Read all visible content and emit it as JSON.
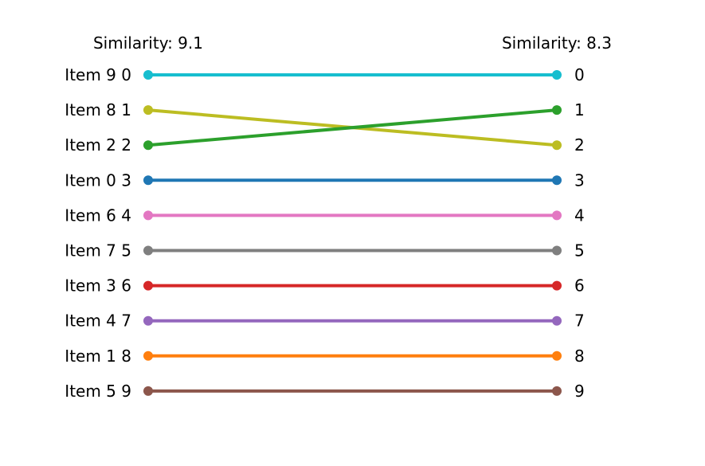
{
  "chart_data": {
    "type": "slope",
    "left_title": "Similarity: 9.1",
    "right_title": "Similarity: 8.3",
    "left_labels": [
      "Item 9 0",
      "Item 8 1",
      "Item 2 2",
      "Item 0 3",
      "Item 6 4",
      "Item 7 5",
      "Item 3 6",
      "Item 4 7",
      "Item 1 8",
      "Item 5 9"
    ],
    "right_labels": [
      "0",
      "1",
      "2",
      "3",
      "4",
      "5",
      "6",
      "7",
      "8",
      "9"
    ],
    "series": [
      {
        "name": "Item 9",
        "left_rank": 0,
        "right_rank": 0,
        "color": "#17becf"
      },
      {
        "name": "Item 8",
        "left_rank": 1,
        "right_rank": 2,
        "color": "#bcbd22"
      },
      {
        "name": "Item 2",
        "left_rank": 2,
        "right_rank": 1,
        "color": "#2ca02c"
      },
      {
        "name": "Item 0",
        "left_rank": 3,
        "right_rank": 3,
        "color": "#1f77b4"
      },
      {
        "name": "Item 6",
        "left_rank": 4,
        "right_rank": 4,
        "color": "#e377c2"
      },
      {
        "name": "Item 7",
        "left_rank": 5,
        "right_rank": 5,
        "color": "#7f7f7f"
      },
      {
        "name": "Item 3",
        "left_rank": 6,
        "right_rank": 6,
        "color": "#d62728"
      },
      {
        "name": "Item 4",
        "left_rank": 7,
        "right_rank": 7,
        "color": "#9467bd"
      },
      {
        "name": "Item 1",
        "left_rank": 8,
        "right_rank": 8,
        "color": "#ff7f0e"
      },
      {
        "name": "Item 5",
        "left_rank": 9,
        "right_rank": 9,
        "color": "#8c564b"
      }
    ]
  }
}
